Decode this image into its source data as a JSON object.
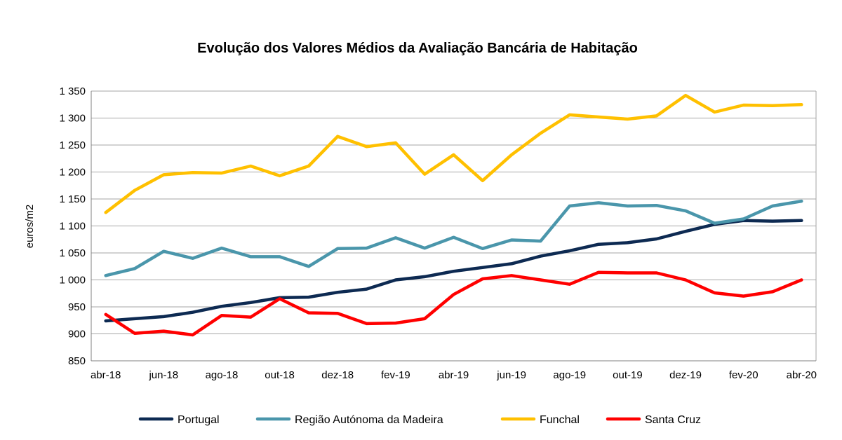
{
  "chart_data": {
    "type": "line",
    "title": "Evolução dos Valores Médios da Avaliação Bancária de Habitação",
    "xlabel": "",
    "ylabel": "euros/m2",
    "ylim": [
      850,
      1350
    ],
    "yticks": [
      850,
      900,
      950,
      1000,
      1050,
      1100,
      1150,
      1200,
      1250,
      1300,
      1350
    ],
    "ytick_labels": [
      "850",
      "900",
      "950",
      "1 000",
      "1 050",
      "1 100",
      "1 150",
      "1 200",
      "1 250",
      "1 300",
      "1 350"
    ],
    "x": [
      "abr-18",
      "mai-18",
      "jun-18",
      "jul-18",
      "ago-18",
      "set-18",
      "out-18",
      "nov-18",
      "dez-18",
      "jan-19",
      "fev-19",
      "mar-19",
      "abr-19",
      "mai-19",
      "jun-19",
      "jul-19",
      "ago-19",
      "set-19",
      "out-19",
      "nov-19",
      "dez-19",
      "jan-20",
      "fev-20",
      "mar-20",
      "abr-20"
    ],
    "xtick_labels": [
      {
        "index": 0,
        "label": "abr-18"
      },
      {
        "index": 2,
        "label": "jun-18"
      },
      {
        "index": 4,
        "label": "ago-18"
      },
      {
        "index": 6,
        "label": "out-18"
      },
      {
        "index": 8,
        "label": "dez-18"
      },
      {
        "index": 10,
        "label": "fev-19"
      },
      {
        "index": 12,
        "label": "abr-19"
      },
      {
        "index": 14,
        "label": "jun-19"
      },
      {
        "index": 16,
        "label": "ago-19"
      },
      {
        "index": 18,
        "label": "out-19"
      },
      {
        "index": 20,
        "label": "dez-19"
      },
      {
        "index": 22,
        "label": "fev-20"
      },
      {
        "index": 24,
        "label": "abr-20"
      }
    ],
    "grid": true,
    "legend_position": "bottom",
    "series": [
      {
        "name": "Portugal",
        "color": "#0d2a52",
        "values": [
          924,
          928,
          932,
          940,
          951,
          958,
          967,
          968,
          977,
          983,
          1000,
          1006,
          1016,
          1023,
          1030,
          1044,
          1054,
          1066,
          1069,
          1076,
          1090,
          1103,
          1110,
          1109,
          1110
        ]
      },
      {
        "name": "Região Autónoma da Madeira",
        "color": "#4a96ab",
        "values": [
          1008,
          1021,
          1053,
          1040,
          1059,
          1043,
          1043,
          1025,
          1058,
          1059,
          1078,
          1059,
          1079,
          1058,
          1074,
          1072,
          1137,
          1143,
          1137,
          1138,
          1128,
          1105,
          1113,
          1137,
          1146
        ]
      },
      {
        "name": "Funchal",
        "color": "#ffc000",
        "values": [
          1125,
          1166,
          1195,
          1199,
          1198,
          1211,
          1193,
          1211,
          1266,
          1247,
          1254,
          1196,
          1232,
          1184,
          1232,
          1272,
          1306,
          1302,
          1298,
          1304,
          1342,
          1311,
          1324,
          1323,
          1325
        ]
      },
      {
        "name": "Santa Cruz",
        "color": "#ff0000",
        "values": [
          936,
          901,
          905,
          898,
          934,
          931,
          965,
          939,
          938,
          919,
          920,
          928,
          973,
          1002,
          1008,
          1000,
          992,
          1014,
          1013,
          1013,
          1000,
          976,
          970,
          978,
          1000
        ]
      }
    ]
  }
}
